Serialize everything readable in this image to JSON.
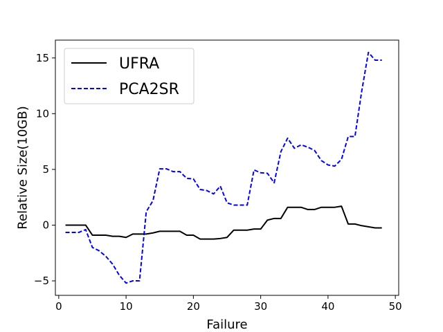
{
  "chart_data": {
    "type": "line",
    "xlabel": "Failure",
    "ylabel": "Relative Size(10GB)",
    "xlim": [
      -0.5,
      50.5
    ],
    "ylim": [
      -6.3,
      16.6
    ],
    "xticks": [
      0,
      10,
      20,
      30,
      40,
      50
    ],
    "yticks": [
      -5,
      0,
      5,
      10,
      15
    ],
    "ytick_labels": [
      "−5",
      "0",
      "5",
      "10",
      "15"
    ],
    "grid": false,
    "legend_position": "upper-left",
    "series": [
      {
        "name": "UFRA",
        "color": "#000000",
        "style": "solid",
        "x": [
          1,
          2,
          3,
          4,
          5,
          6,
          7,
          8,
          9,
          10,
          11,
          12,
          13,
          14,
          15,
          16,
          17,
          18,
          19,
          20,
          21,
          22,
          23,
          24,
          25,
          26,
          27,
          28,
          29,
          30,
          31,
          32,
          33,
          34,
          35,
          36,
          37,
          38,
          39,
          40,
          41,
          42,
          43,
          44,
          45,
          46,
          47,
          48
        ],
        "y": [
          0,
          0,
          0,
          0,
          -0.9,
          -0.9,
          -0.9,
          -1.0,
          -1.0,
          -1.1,
          -0.8,
          -0.8,
          -0.8,
          -0.7,
          -0.55,
          -0.55,
          -0.55,
          -0.55,
          -0.9,
          -0.9,
          -1.25,
          -1.25,
          -1.25,
          -1.2,
          -1.1,
          -0.45,
          -0.45,
          -0.45,
          -0.35,
          -0.35,
          0.45,
          0.6,
          0.6,
          1.6,
          1.6,
          1.6,
          1.4,
          1.4,
          1.6,
          1.6,
          1.6,
          1.7,
          0.1,
          0.1,
          -0.05,
          -0.15,
          -0.25,
          -0.25
        ]
      },
      {
        "name": "PCA2SR",
        "color": "#0000ff",
        "style": "dashed",
        "x": [
          1,
          2,
          3,
          4,
          5,
          6,
          7,
          8,
          9,
          10,
          11,
          12,
          13,
          14,
          15,
          16,
          17,
          18,
          19,
          20,
          21,
          22,
          23,
          24,
          25,
          26,
          27,
          28,
          29,
          30,
          31,
          32,
          33,
          34,
          35,
          36,
          37,
          38,
          39,
          40,
          41,
          42,
          43,
          44,
          45,
          46,
          47,
          48
        ],
        "y": [
          -0.65,
          -0.65,
          -0.65,
          -0.4,
          -2.0,
          -2.3,
          -2.8,
          -3.5,
          -4.5,
          -5.2,
          -5.0,
          -5.0,
          1.2,
          2.2,
          5.05,
          5.05,
          4.8,
          4.8,
          4.2,
          4.15,
          3.2,
          3.1,
          2.8,
          3.5,
          2.0,
          1.8,
          1.8,
          1.8,
          4.95,
          4.7,
          4.65,
          3.8,
          6.6,
          7.8,
          6.9,
          7.2,
          7.0,
          6.7,
          5.8,
          5.4,
          5.3,
          5.9,
          7.95,
          7.95,
          12.0,
          15.5,
          14.8,
          14.8
        ]
      }
    ]
  }
}
